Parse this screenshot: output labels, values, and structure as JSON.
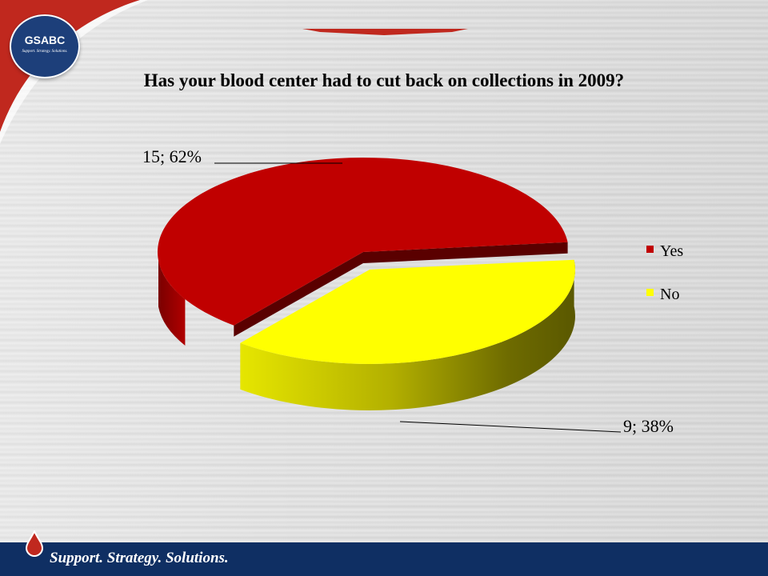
{
  "slide": {
    "title": "Has your blood center had to cut back on collections in 2009?",
    "footer_text": "Support. Strategy. Solutions.",
    "logo": {
      "name": "GSABC",
      "tagline": "Support. Strategy. Solutions."
    },
    "colors": {
      "brand_red": "#c0281e",
      "footer_navy": "#0f2f63"
    }
  },
  "chart_data": {
    "type": "pie",
    "title": "Has your blood center had to cut back on collections in 2009?",
    "categories": [
      "Yes",
      "No"
    ],
    "values": [
      15,
      9
    ],
    "percents": [
      62,
      38
    ],
    "data_labels": [
      "15; 62%",
      "9; 38%"
    ],
    "legend": [
      "Yes",
      "No"
    ],
    "legend_position": "right",
    "colors": [
      "#c00000",
      "#ffff00"
    ],
    "three_d": true
  }
}
